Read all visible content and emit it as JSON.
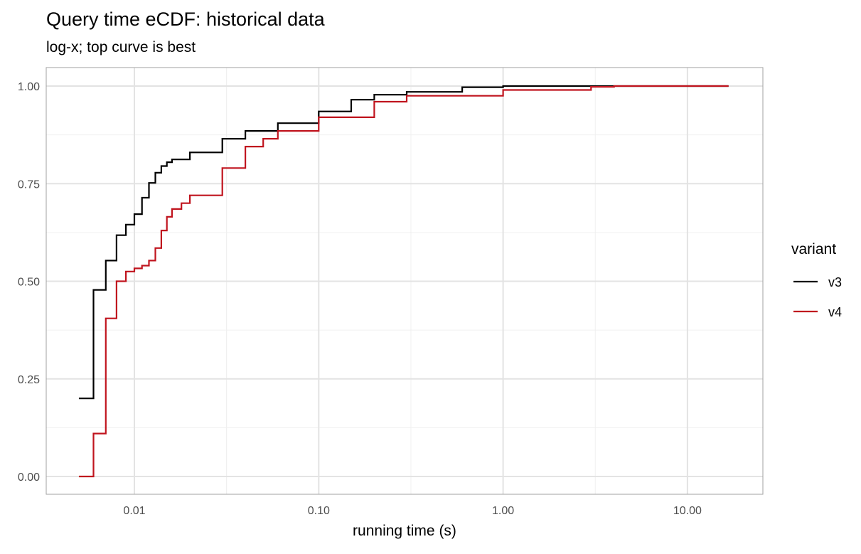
{
  "chart_data": {
    "type": "line",
    "title": "Query time eCDF: historical data",
    "subtitle": "log-x; top curve is best",
    "xlabel": "running time (s)",
    "ylabel": "",
    "x_scale": "log10",
    "xlim": [
      0.0045,
      20
    ],
    "ylim": [
      -0.045,
      1.045
    ],
    "x_ticks": [
      0.01,
      0.1,
      1,
      10
    ],
    "x_tick_labels": [
      "0.01",
      "0.10",
      "1.00",
      "10.00"
    ],
    "y_ticks": [
      0,
      0.25,
      0.5,
      0.75,
      1
    ],
    "y_tick_labels": [
      "0.00",
      "0.25",
      "0.50",
      "0.75",
      "1.00"
    ],
    "grid": true,
    "step": true,
    "legend": {
      "title": "variant",
      "placement": "right"
    },
    "series": [
      {
        "name": "v3",
        "color": "#000000",
        "x": [
          0.005,
          0.006,
          0.007,
          0.008,
          0.009,
          0.01,
          0.011,
          0.012,
          0.013,
          0.014,
          0.015,
          0.016,
          0.02,
          0.03,
          0.04,
          0.06,
          0.1,
          0.15,
          0.2,
          0.3,
          0.6,
          1,
          16.7
        ],
        "y": [
          0.2,
          0.478,
          0.553,
          0.618,
          0.645,
          0.672,
          0.714,
          0.752,
          0.778,
          0.795,
          0.805,
          0.812,
          0.83,
          0.865,
          0.885,
          0.905,
          0.935,
          0.965,
          0.978,
          0.985,
          0.997,
          1.0,
          1.0
        ]
      },
      {
        "name": "v4",
        "color": "#c0141e",
        "x": [
          0.005,
          0.006,
          0.007,
          0.008,
          0.009,
          0.01,
          0.011,
          0.012,
          0.013,
          0.014,
          0.015,
          0.016,
          0.018,
          0.02,
          0.03,
          0.04,
          0.05,
          0.06,
          0.1,
          0.2,
          0.3,
          1,
          3,
          4,
          16.7
        ],
        "y": [
          0.0,
          0.11,
          0.405,
          0.5,
          0.525,
          0.533,
          0.54,
          0.553,
          0.585,
          0.63,
          0.665,
          0.685,
          0.7,
          0.72,
          0.79,
          0.845,
          0.865,
          0.885,
          0.92,
          0.96,
          0.975,
          0.99,
          0.998,
          1.0,
          1.0
        ]
      }
    ]
  }
}
